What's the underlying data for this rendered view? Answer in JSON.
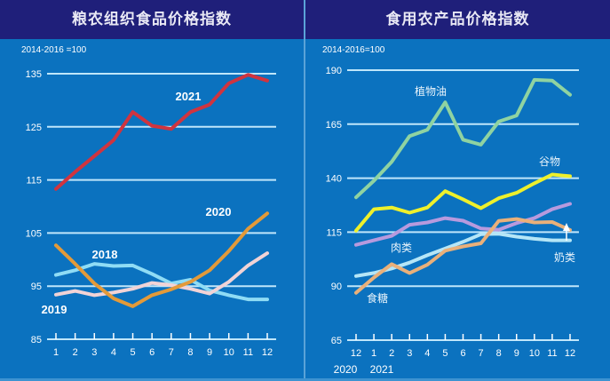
{
  "chart_data": [
    {
      "type": "line",
      "title": "粮农组织食品价格指数",
      "subtitle": "2014-2016 =100",
      "xlabel": "",
      "ylabel": "",
      "x": [
        "1",
        "2",
        "3",
        "4",
        "5",
        "6",
        "7",
        "8",
        "9",
        "10",
        "11",
        "12"
      ],
      "yticks": [
        85,
        95,
        105,
        115,
        125,
        135
      ],
      "ylim": [
        85,
        135
      ],
      "grid": true,
      "series": [
        {
          "name": "2018",
          "color": "#8fdcf5",
          "values": [
            97.1,
            98.0,
            99.2,
            98.8,
            98.9,
            97.3,
            95.5,
            96.2,
            94.2,
            93.3,
            92.5,
            92.5
          ]
        },
        {
          "name": "2019",
          "color": "#f1d3d6",
          "values": [
            93.4,
            94.1,
            93.3,
            93.8,
            94.5,
            95.6,
            95.2,
            94.5,
            93.6,
            95.8,
            98.9,
            101.2
          ]
        },
        {
          "name": "2020",
          "color": "#e39a39",
          "values": [
            102.7,
            99.2,
            95.5,
            92.7,
            91.2,
            93.3,
            94.4,
            95.8,
            98.0,
            101.6,
            105.8,
            108.7
          ]
        },
        {
          "name": "2021",
          "color": "#d0343f",
          "values": [
            113.3,
            116.5,
            119.5,
            122.5,
            127.8,
            125.2,
            124.6,
            127.8,
            129.2,
            133.2,
            134.8,
            133.7
          ]
        }
      ],
      "annotations": [
        "2021",
        "2020",
        "2018",
        "2019"
      ]
    },
    {
      "type": "line",
      "title": "食用农产品价格指数",
      "subtitle": "2014-2016=100",
      "xlabel": "",
      "ylabel": "",
      "x": [
        "12",
        "1",
        "2",
        "3",
        "4",
        "5",
        "6",
        "7",
        "8",
        "9",
        "10",
        "11",
        "12"
      ],
      "x_year_labels": [
        "2020",
        "2021"
      ],
      "yticks": [
        65,
        90,
        115,
        140,
        165,
        190
      ],
      "ylim": [
        65,
        190
      ],
      "grid": true,
      "series": [
        {
          "name": "植物油",
          "color": "#8fd3a1",
          "values": [
            131.1,
            138.8,
            147.6,
            159.5,
            162.4,
            175.1,
            157.8,
            155.5,
            166.2,
            169.0,
            185.5,
            185.2,
            178.6
          ]
        },
        {
          "name": "谷物",
          "color": "#eef02b",
          "values": [
            115.7,
            125.6,
            126.4,
            124.0,
            126.4,
            134.0,
            130.2,
            126.1,
            130.7,
            133.2,
            137.6,
            141.7,
            140.9
          ]
        },
        {
          "name": "肉类",
          "color": "#b79ade",
          "values": [
            109.1,
            111.2,
            113.3,
            118.4,
            119.5,
            121.5,
            120.3,
            116.7,
            116.1,
            119.2,
            121.5,
            125.6,
            128.1
          ]
        },
        {
          "name": "奶类",
          "color": "#b5e6f7",
          "values": [
            94.7,
            96.1,
            98.2,
            100.9,
            104.3,
            107.4,
            110.5,
            114.0,
            114.2,
            112.9,
            111.9,
            111.2,
            111.2
          ]
        },
        {
          "name": "食糖",
          "color": "#e9b07a",
          "values": [
            86.9,
            94.0,
            100.2,
            96.1,
            99.9,
            106.4,
            108.4,
            109.8,
            120.2,
            121.1,
            119.5,
            119.7,
            116.0
          ]
        }
      ],
      "annotations": [
        "植物油",
        "谷物",
        "肉类",
        "奶类",
        "食糖"
      ]
    }
  ]
}
